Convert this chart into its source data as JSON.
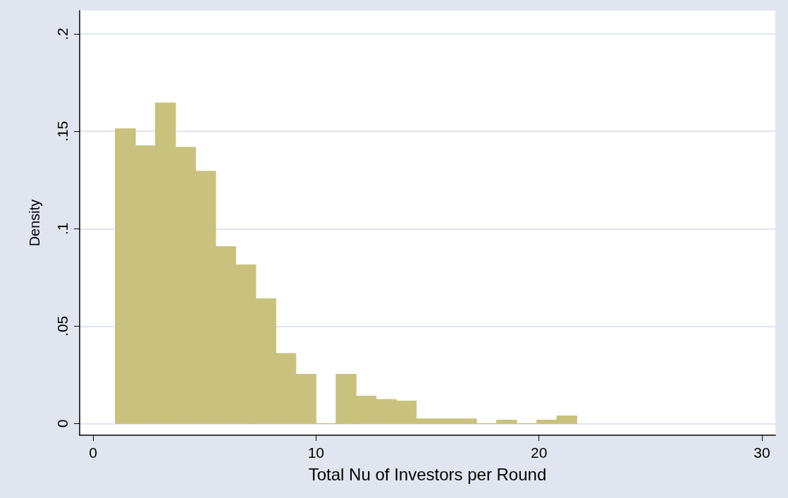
{
  "chart_data": {
    "type": "histogram",
    "xlabel": "Total Nu of Investors per Round",
    "ylabel": "Density",
    "bins": [
      1,
      1.9,
      2.8,
      3.7,
      4.6,
      5.5,
      6.4,
      7.3,
      8.2,
      9.1,
      10,
      10.9,
      11.8,
      12.7,
      13.6,
      14.5,
      15.4,
      16.3,
      17.2,
      18.1,
      19,
      19.9,
      20.8,
      21.7
    ],
    "values": [
      0.1514,
      0.1426,
      0.1646,
      0.1418,
      0.1295,
      0.0909,
      0.0815,
      0.0641,
      0.036,
      0.0253,
      0,
      0.0253,
      0.0141,
      0.0124,
      0.0116,
      0.0024,
      0.0024,
      0.0024,
      0,
      0.0018,
      0,
      0.0018,
      0.0039
    ],
    "color": "#c9c27e",
    "xlim": [
      -0.6,
      30.6
    ],
    "xticks": [
      0,
      10,
      20,
      30
    ],
    "ylim": [
      -0.006,
      0.212
    ],
    "yticks": [
      0,
      {
        "value": 0.05,
        "label": ".05"
      },
      {
        "value": 0.1,
        "label": ".1"
      },
      {
        "value": 0.15,
        "label": ".15"
      },
      {
        "value": 0.2,
        "label": ".2"
      }
    ],
    "grid": "y"
  }
}
